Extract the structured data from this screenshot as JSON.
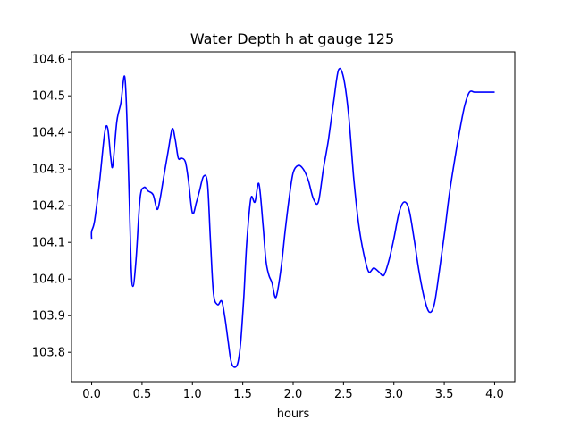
{
  "chart_data": {
    "type": "line",
    "title": "Water Depth h at gauge 125",
    "xlabel": "hours",
    "ylabel": "",
    "xlim": [
      -0.2,
      4.2
    ],
    "ylim": [
      103.72,
      104.62
    ],
    "x_ticks": [
      0.0,
      0.5,
      1.0,
      1.5,
      2.0,
      2.5,
      3.0,
      3.5,
      4.0
    ],
    "x_tick_labels": [
      "0.0",
      "0.5",
      "1.0",
      "1.5",
      "2.0",
      "2.5",
      "3.0",
      "3.5",
      "4.0"
    ],
    "y_ticks": [
      103.8,
      103.9,
      104.0,
      104.1,
      104.2,
      104.3,
      104.4,
      104.5,
      104.6
    ],
    "y_tick_labels": [
      "103.8",
      "103.9",
      "104.0",
      "104.1",
      "104.2",
      "104.3",
      "104.4",
      "104.5",
      "104.6"
    ],
    "grid": false,
    "colors": {
      "line": "#0000ff",
      "axes": "#000000"
    },
    "series": [
      {
        "color": "#0000ff",
        "x": [
          0.0,
          0.0,
          0.03,
          0.08,
          0.13,
          0.16,
          0.19,
          0.21,
          0.25,
          0.29,
          0.33,
          0.36,
          0.39,
          0.41,
          0.44,
          0.48,
          0.52,
          0.56,
          0.61,
          0.65,
          0.68,
          0.71,
          0.76,
          0.8,
          0.83,
          0.86,
          0.89,
          0.93,
          0.96,
          1.0,
          1.04,
          1.07,
          1.11,
          1.15,
          1.18,
          1.21,
          1.25,
          1.29,
          1.32,
          1.35,
          1.38,
          1.41,
          1.45,
          1.48,
          1.51,
          1.54,
          1.58,
          1.62,
          1.66,
          1.7,
          1.73,
          1.76,
          1.79,
          1.83,
          1.88,
          1.92,
          1.96,
          2.0,
          2.05,
          2.1,
          2.15,
          2.2,
          2.25,
          2.3,
          2.35,
          2.4,
          2.45,
          2.5,
          2.55,
          2.6,
          2.65,
          2.7,
          2.75,
          2.8,
          2.85,
          2.9,
          2.95,
          3.0,
          3.05,
          3.1,
          3.15,
          3.2,
          3.25,
          3.3,
          3.35,
          3.4,
          3.45,
          3.5,
          3.55,
          3.6,
          3.65,
          3.7,
          3.75,
          3.8,
          3.85,
          3.9,
          3.95,
          4.0
        ],
        "y": [
          104.11,
          104.13,
          104.16,
          104.27,
          104.4,
          104.41,
          104.33,
          104.31,
          104.43,
          104.48,
          104.55,
          104.35,
          104.05,
          103.98,
          104.05,
          104.22,
          104.25,
          104.24,
          104.23,
          104.19,
          104.22,
          104.27,
          104.35,
          104.41,
          104.38,
          104.33,
          104.33,
          104.32,
          104.27,
          104.18,
          104.21,
          104.24,
          104.28,
          104.26,
          104.1,
          103.96,
          103.93,
          103.94,
          103.9,
          103.84,
          103.78,
          103.76,
          103.77,
          103.83,
          103.95,
          104.1,
          104.22,
          104.21,
          104.26,
          104.15,
          104.05,
          104.01,
          103.99,
          103.95,
          104.03,
          104.13,
          104.22,
          104.29,
          104.31,
          104.3,
          104.27,
          104.22,
          104.21,
          104.3,
          104.38,
          104.48,
          104.57,
          104.55,
          104.45,
          104.28,
          104.15,
          104.07,
          104.02,
          104.03,
          104.02,
          104.01,
          104.05,
          104.11,
          104.18,
          104.21,
          104.19,
          104.11,
          104.02,
          103.95,
          103.91,
          103.93,
          104.02,
          104.12,
          104.23,
          104.32,
          104.4,
          104.47,
          104.51,
          104.51,
          104.51,
          104.51,
          104.51,
          104.51
        ]
      }
    ]
  }
}
